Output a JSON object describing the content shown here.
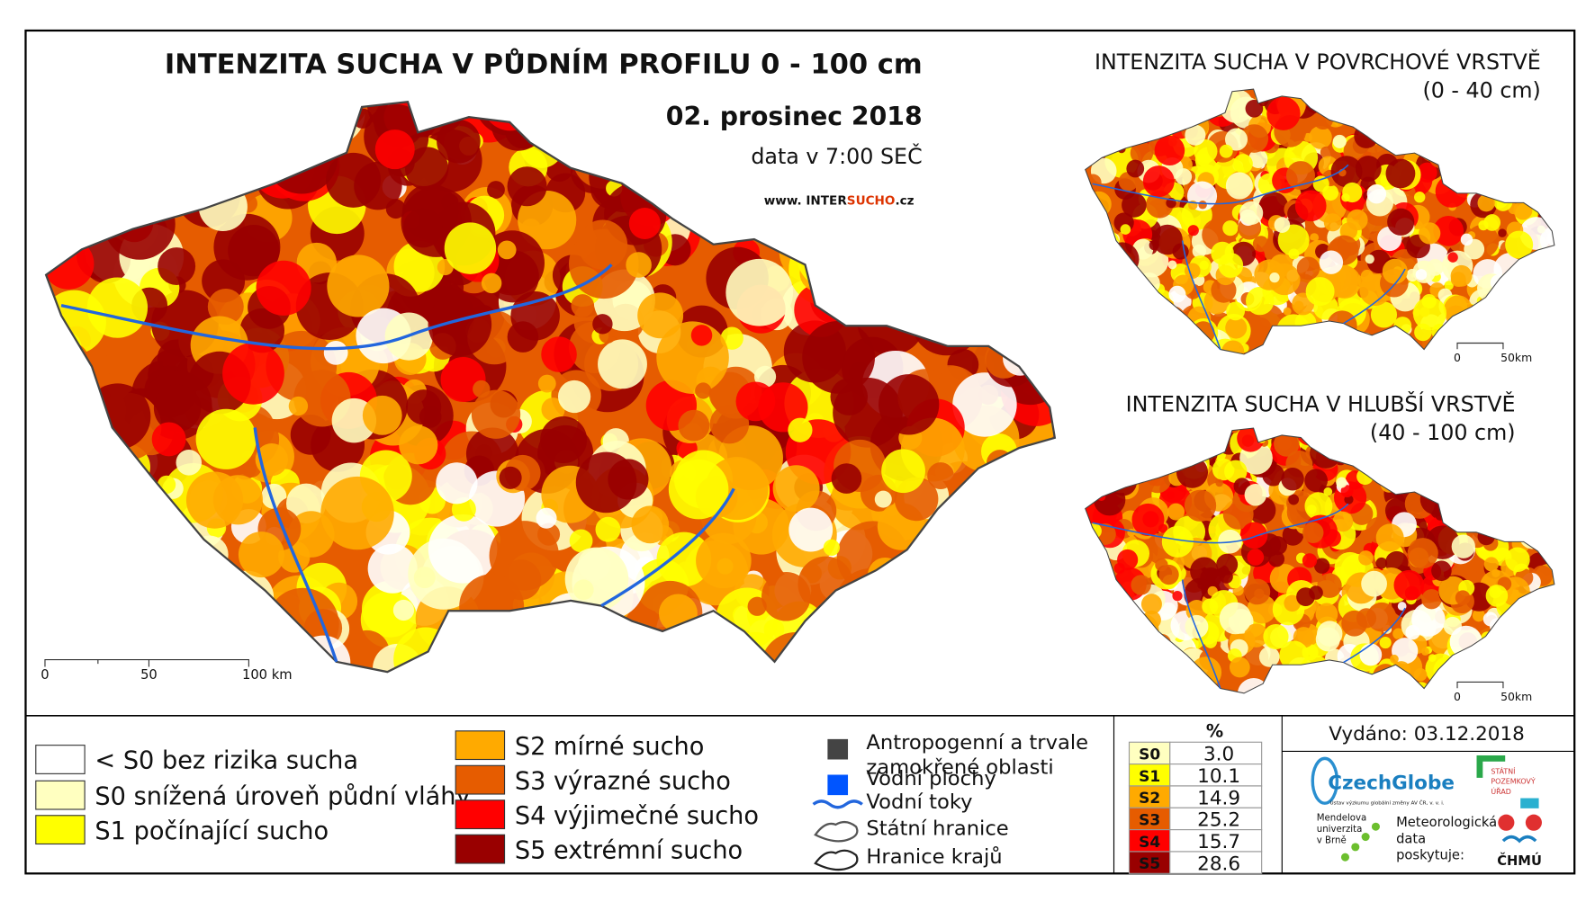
{
  "main_map": {
    "title": "INTENZITA SUCHA V PŮDNÍM PROFILU 0 - 100 cm",
    "date": "02. prosinec 2018",
    "time": "data v 7:00 SEČ",
    "website": [
      "www. INTER",
      "SUCHO",
      ".cz"
    ],
    "scale_labels": [
      "0",
      "50",
      "100 km"
    ]
  },
  "inset_top": {
    "title": "INTENZITA SUCHA V POVRCHOVÉ VRSTVĚ",
    "subtitle": "(0 - 40 cm)",
    "scale_labels": [
      "0",
      "50km"
    ]
  },
  "inset_bottom": {
    "title": "INTENZITA SUCHA V HLUBŠÍ VRSTVĚ",
    "subtitle": "(40 - 100 cm)",
    "scale_labels": [
      "0",
      "50km"
    ]
  },
  "legend": {
    "classes": [
      {
        "label": "< S0 bez rizika sucha",
        "color": "#ffffff"
      },
      {
        "label": "S0 snížená úroveň půdní vláhy",
        "color": "#ffffc0"
      },
      {
        "label": "S1 počínající sucho",
        "color": "#ffff00"
      },
      {
        "label": "S2 mírné sucho",
        "color": "#ffaa00"
      },
      {
        "label": "S3 výrazné sucho",
        "color": "#e65c00"
      },
      {
        "label": "S4 výjimečné sucho",
        "color": "#ff0000"
      },
      {
        "label": "S5 extrémní sucho",
        "color": "#990000"
      }
    ],
    "other": [
      {
        "label": [
          "Antropogenní a trvale",
          "zamokřené oblasti"
        ],
        "color": "#444444"
      },
      {
        "label": [
          "Vodní plochy"
        ],
        "color": "#0055ff"
      },
      {
        "label": [
          "Vodní toky"
        ],
        "color": "#2266dd"
      },
      {
        "label": [
          "Státní hranice"
        ],
        "color": "#555555"
      },
      {
        "label": [
          "Hranice krajů"
        ],
        "color": "#222222"
      }
    ]
  },
  "table": {
    "header": "%",
    "rows": [
      [
        "S0",
        "3.0"
      ],
      [
        "S1",
        "10.1"
      ],
      [
        "S2",
        "14.9"
      ],
      [
        "S3",
        "25.2"
      ],
      [
        "S4",
        "15.7"
      ],
      [
        "S5",
        "28.6"
      ]
    ]
  },
  "issued": "Vydáno: 03.12.2018",
  "logos": {
    "czechglobe": "CzechGlobe",
    "czechglobe_sub": "Ústav výzkumu globální změny AV ČR, v. v. i.",
    "spu": [
      "STÁTNÍ",
      "POZEMKOVÝ",
      "ÚŘAD"
    ],
    "mendelu": [
      "Mendelova",
      "univerzita",
      "v Brně"
    ],
    "meteo": [
      "Meteorologická",
      "data",
      "poskytuje:"
    ],
    "chmu": "ČHMÚ"
  }
}
